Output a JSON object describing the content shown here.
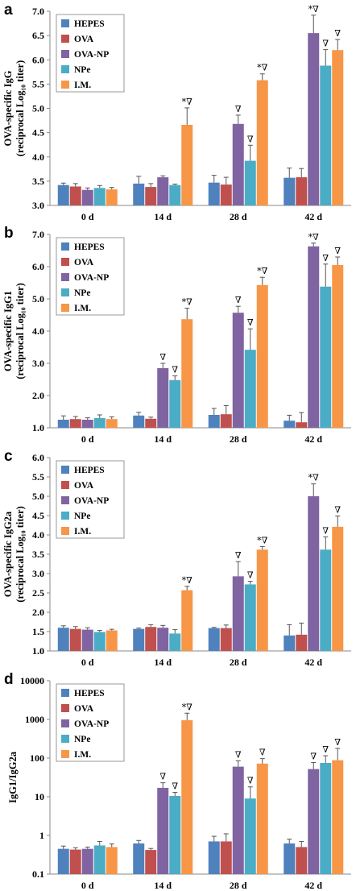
{
  "colors": {
    "HEPES": "#4f81bd",
    "OVA": "#c0504d",
    "OVA-NP": "#8064a2",
    "NPe": "#4bacc6",
    "I.M.": "#f79646"
  },
  "chart_data": [
    {
      "type": "bar",
      "panel": "a",
      "ylabel_lines": [
        "OVA-specific IgG",
        "(reciprocal Log₁₀ titer)"
      ],
      "categories": [
        "0 d",
        "14 d",
        "28 d",
        "42 d"
      ],
      "ylim": [
        3.0,
        7.0
      ],
      "yscale": "linear",
      "yticks": [
        "3.0",
        "3.5",
        "4.0",
        "4.5",
        "5.0",
        "5.5",
        "6.0",
        "6.5",
        "7.0"
      ],
      "legend": "top-left",
      "series": [
        {
          "name": "HEPES",
          "values": [
            3.42,
            3.45,
            3.47,
            3.57
          ],
          "errors": [
            0.04,
            0.15,
            0.15,
            0.2
          ]
        },
        {
          "name": "OVA",
          "values": [
            3.39,
            3.38,
            3.43,
            3.58
          ],
          "errors": [
            0.06,
            0.07,
            0.15,
            0.18
          ]
        },
        {
          "name": "OVA-NP",
          "values": [
            3.32,
            3.58,
            4.68,
            6.55
          ],
          "errors": [
            0.04,
            0.03,
            0.18,
            0.37
          ]
        },
        {
          "name": "NPe",
          "values": [
            3.36,
            3.42,
            3.92,
            5.88
          ],
          "errors": [
            0.05,
            0.02,
            0.32,
            0.33
          ]
        },
        {
          "name": "I.M.",
          "values": [
            3.33,
            4.66,
            5.58,
            6.2
          ],
          "errors": [
            0.04,
            0.35,
            0.13,
            0.22
          ]
        }
      ],
      "annotations": [
        {
          "category": "14 d",
          "series": "I.M.",
          "text": "*∇"
        },
        {
          "category": "28 d",
          "series": "OVA-NP",
          "text": "∇"
        },
        {
          "category": "28 d",
          "series": "NPe",
          "text": "∇"
        },
        {
          "category": "28 d",
          "series": "I.M.",
          "text": "*∇"
        },
        {
          "category": "42 d",
          "series": "OVA-NP",
          "text": "*∇"
        },
        {
          "category": "42 d",
          "series": "NPe",
          "text": "∇"
        },
        {
          "category": "42 d",
          "series": "I.M.",
          "text": "∇"
        }
      ]
    },
    {
      "type": "bar",
      "panel": "b",
      "ylabel_lines": [
        "OVA-specific IgG1",
        "(reciprocal Log₁₀ titer)"
      ],
      "categories": [
        "0 d",
        "14 d",
        "28 d",
        "42 d"
      ],
      "ylim": [
        1.0,
        7.0
      ],
      "yscale": "linear",
      "yticks": [
        "1.0",
        "2.0",
        "3.0",
        "4.0",
        "5.0",
        "6.0",
        "7.0"
      ],
      "legend": "top-left",
      "series": [
        {
          "name": "HEPES",
          "values": [
            1.25,
            1.38,
            1.4,
            1.22
          ],
          "errors": [
            0.12,
            0.1,
            0.2,
            0.17
          ]
        },
        {
          "name": "OVA",
          "values": [
            1.27,
            1.28,
            1.42,
            1.17
          ],
          "errors": [
            0.08,
            0.05,
            0.27,
            0.3
          ]
        },
        {
          "name": "OVA-NP",
          "values": [
            1.25,
            2.85,
            4.57,
            6.63
          ],
          "errors": [
            0.06,
            0.15,
            0.2,
            0.1
          ]
        },
        {
          "name": "NPe",
          "values": [
            1.3,
            2.48,
            3.42,
            5.38
          ],
          "errors": [
            0.1,
            0.13,
            0.65,
            0.7
          ]
        },
        {
          "name": "I.M.",
          "values": [
            1.27,
            4.37,
            5.43,
            6.05
          ],
          "errors": [
            0.07,
            0.34,
            0.24,
            0.25
          ]
        }
      ],
      "annotations": [
        {
          "category": "14 d",
          "series": "OVA-NP",
          "text": "∇"
        },
        {
          "category": "14 d",
          "series": "NPe",
          "text": "∇"
        },
        {
          "category": "14 d",
          "series": "I.M.",
          "text": "*∇"
        },
        {
          "category": "28 d",
          "series": "OVA-NP",
          "text": "∇"
        },
        {
          "category": "28 d",
          "series": "NPe",
          "text": "∇"
        },
        {
          "category": "28 d",
          "series": "I.M.",
          "text": "*∇"
        },
        {
          "category": "42 d",
          "series": "OVA-NP",
          "text": "*∇"
        },
        {
          "category": "42 d",
          "series": "NPe",
          "text": "∇"
        },
        {
          "category": "42 d",
          "series": "I.M.",
          "text": "∇"
        }
      ]
    },
    {
      "type": "bar",
      "panel": "c",
      "ylabel_lines": [
        "OVA-specific IgG2a",
        "(reciprocal Log₁₀ titer)"
      ],
      "categories": [
        "0 d",
        "14 d",
        "28 d",
        "42 d"
      ],
      "ylim": [
        1.0,
        6.0
      ],
      "yscale": "linear",
      "yticks": [
        "1.0",
        "1.5",
        "2.0",
        "2.5",
        "3.0",
        "3.5",
        "4.0",
        "4.5",
        "5.0",
        "5.5",
        "6.0"
      ],
      "legend": "top-left",
      "series": [
        {
          "name": "HEPES",
          "values": [
            1.6,
            1.57,
            1.59,
            1.4
          ],
          "errors": [
            0.05,
            0.02,
            0.02,
            0.28
          ]
        },
        {
          "name": "OVA",
          "values": [
            1.57,
            1.62,
            1.59,
            1.42
          ],
          "errors": [
            0.06,
            0.06,
            0.08,
            0.3
          ]
        },
        {
          "name": "OVA-NP",
          "values": [
            1.55,
            1.6,
            2.93,
            5.0
          ],
          "errors": [
            0.05,
            0.06,
            0.38,
            0.32
          ]
        },
        {
          "name": "NPe",
          "values": [
            1.49,
            1.45,
            2.72,
            3.62
          ],
          "errors": [
            0.04,
            0.1,
            0.08,
            0.33
          ]
        },
        {
          "name": "I.M.",
          "values": [
            1.53,
            2.57,
            3.62,
            4.21
          ],
          "errors": [
            0.03,
            0.1,
            0.08,
            0.28
          ]
        }
      ],
      "annotations": [
        {
          "category": "14 d",
          "series": "I.M.",
          "text": "*∇"
        },
        {
          "category": "28 d",
          "series": "OVA-NP",
          "text": "∇"
        },
        {
          "category": "28 d",
          "series": "NPe",
          "text": "∇"
        },
        {
          "category": "28 d",
          "series": "I.M.",
          "text": "*∇"
        },
        {
          "category": "42 d",
          "series": "OVA-NP",
          "text": "*∇"
        },
        {
          "category": "42 d",
          "series": "NPe",
          "text": "∇"
        },
        {
          "category": "42 d",
          "series": "I.M.",
          "text": "∇"
        }
      ]
    },
    {
      "type": "bar",
      "panel": "d",
      "ylabel_lines": [
        "IgG1/IgG2a"
      ],
      "categories": [
        "0 d",
        "14 d",
        "28 d",
        "42 d"
      ],
      "ylim": [
        0.1,
        10000
      ],
      "yscale": "log",
      "yticks": [
        "0.1",
        "1",
        "10",
        "100",
        "1000",
        "10000"
      ],
      "legend": "top-left",
      "series": [
        {
          "name": "HEPES",
          "values": [
            0.45,
            0.62,
            0.7,
            0.62
          ],
          "errors": [
            0.08,
            0.12,
            0.25,
            0.18
          ]
        },
        {
          "name": "OVA",
          "values": [
            0.43,
            0.42,
            0.7,
            0.5
          ],
          "errors": [
            0.05,
            0.04,
            0.4,
            0.2
          ]
        },
        {
          "name": "OVA-NP",
          "values": [
            0.45,
            17,
            60,
            52
          ],
          "errors": [
            0.05,
            6,
            25,
            25
          ]
        },
        {
          "name": "NPe",
          "values": [
            0.55,
            10.5,
            9,
            75
          ],
          "errors": [
            0.15,
            2.5,
            9,
            40
          ]
        },
        {
          "name": "I.M.",
          "values": [
            0.5,
            950,
            72,
            88
          ],
          "errors": [
            0.1,
            500,
            25,
            90
          ]
        }
      ],
      "annotations": [
        {
          "category": "14 d",
          "series": "OVA-NP",
          "text": "∇"
        },
        {
          "category": "14 d",
          "series": "NPe",
          "text": "∇"
        },
        {
          "category": "14 d",
          "series": "I.M.",
          "text": "*∇"
        },
        {
          "category": "28 d",
          "series": "OVA-NP",
          "text": "∇"
        },
        {
          "category": "28 d",
          "series": "NPe",
          "text": "∇"
        },
        {
          "category": "28 d",
          "series": "I.M.",
          "text": "∇"
        },
        {
          "category": "42 d",
          "series": "OVA-NP",
          "text": "∇"
        },
        {
          "category": "42 d",
          "series": "NPe",
          "text": "∇"
        },
        {
          "category": "42 d",
          "series": "I.M.",
          "text": "∇"
        }
      ]
    }
  ]
}
